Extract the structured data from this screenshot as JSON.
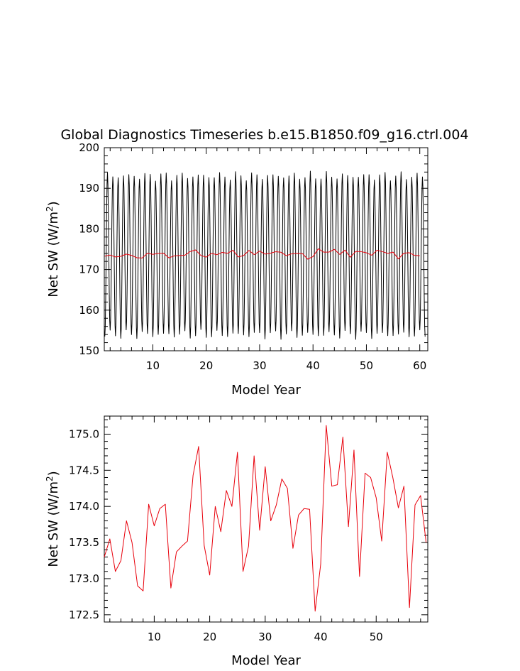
{
  "chart_data": [
    {
      "type": "line",
      "title": "Global Diagnostics Timeseries b.e15.B1850.f09_g16.ctrl.004",
      "xlabel": "Model Year",
      "ylabel_main": "Net SW (W/m",
      "ylabel_sup": "2",
      "ylabel_close": ")",
      "xlim": [
        0.9,
        61.5
      ],
      "ylim": [
        150,
        200
      ],
      "xticks": [
        10,
        20,
        30,
        40,
        50,
        60
      ],
      "xtick_labels": [
        "10",
        "20",
        "30",
        "40",
        "50",
        "60"
      ],
      "yticks": [
        150,
        160,
        170,
        180,
        190,
        200
      ],
      "ytick_labels": [
        "150",
        "160",
        "170",
        "180",
        "190",
        "200"
      ],
      "grid": false,
      "series": [
        {
          "kind": "monthly",
          "color": "#000000",
          "start_year": 1.0,
          "mean": 173.5,
          "amplitude": 19.5,
          "period_years": 1.0,
          "years": 60
        },
        {
          "kind": "annual",
          "color": "#e8000b",
          "x": [
            1,
            2,
            3,
            4,
            5,
            6,
            7,
            8,
            9,
            10,
            11,
            12,
            13,
            14,
            15,
            16,
            17,
            18,
            19,
            20,
            21,
            22,
            23,
            24,
            25,
            26,
            27,
            28,
            29,
            30,
            31,
            32,
            33,
            34,
            35,
            36,
            37,
            38,
            39,
            40,
            41,
            42,
            43,
            44,
            45,
            46,
            47,
            48,
            49,
            50,
            51,
            52,
            53,
            54,
            55,
            56,
            57,
            58,
            59,
            60
          ],
          "y": [
            173.3,
            173.55,
            173.1,
            173.25,
            173.8,
            173.5,
            172.9,
            172.83,
            174.03,
            173.73,
            173.97,
            174.03,
            172.87,
            173.37,
            173.45,
            173.52,
            174.43,
            174.83,
            173.46,
            173.05,
            174.0,
            173.65,
            174.22,
            174.0,
            174.75,
            173.1,
            173.45,
            174.7,
            173.67,
            174.55,
            173.8,
            174.02,
            174.38,
            174.25,
            173.42,
            173.88,
            173.97,
            173.96,
            172.55,
            173.2,
            175.12,
            174.28,
            174.3,
            174.96,
            173.72,
            174.78,
            173.03,
            174.46,
            174.4,
            174.12,
            173.52,
            174.75,
            174.4,
            173.98,
            174.28,
            172.6,
            174.02,
            174.15,
            173.5,
            173.4
          ]
        }
      ]
    },
    {
      "type": "line",
      "title": "",
      "xlabel": "Model Year",
      "ylabel_main": "Net SW (W/m",
      "ylabel_sup": "2",
      "ylabel_close": ")",
      "xlim": [
        1.0,
        59.3
      ],
      "ylim": [
        172.4,
        175.25
      ],
      "xticks": [
        10,
        20,
        30,
        40,
        50
      ],
      "xtick_labels": [
        "10",
        "20",
        "30",
        "40",
        "50"
      ],
      "yticks": [
        172.5,
        173.0,
        173.5,
        174.0,
        174.5,
        175.0
      ],
      "ytick_labels": [
        "172.5",
        "173.0",
        "173.5",
        "174.0",
        "174.5",
        "175.0"
      ],
      "grid": false,
      "series": [
        {
          "kind": "annual",
          "color": "#e8000b",
          "x": [
            1,
            2,
            3,
            4,
            5,
            6,
            7,
            8,
            9,
            10,
            11,
            12,
            13,
            14,
            15,
            16,
            17,
            18,
            19,
            20,
            21,
            22,
            23,
            24,
            25,
            26,
            27,
            28,
            29,
            30,
            31,
            32,
            33,
            34,
            35,
            36,
            37,
            38,
            39,
            40,
            41,
            42,
            43,
            44,
            45,
            46,
            47,
            48,
            49,
            50,
            51,
            52,
            53,
            54,
            55,
            56,
            57,
            58,
            59
          ],
          "y": [
            173.3,
            173.55,
            173.1,
            173.25,
            173.8,
            173.5,
            172.9,
            172.83,
            174.03,
            173.73,
            173.97,
            174.03,
            172.87,
            173.37,
            173.45,
            173.52,
            174.43,
            174.83,
            173.46,
            173.05,
            174.0,
            173.65,
            174.22,
            174.0,
            174.75,
            173.1,
            173.45,
            174.7,
            173.67,
            174.55,
            173.8,
            174.02,
            174.38,
            174.25,
            173.42,
            173.88,
            173.97,
            173.96,
            172.55,
            173.2,
            175.12,
            174.28,
            174.3,
            174.96,
            173.72,
            174.78,
            173.03,
            174.46,
            174.4,
            174.12,
            173.52,
            174.75,
            174.4,
            173.98,
            174.28,
            172.6,
            174.02,
            174.15,
            173.5
          ]
        }
      ]
    }
  ]
}
